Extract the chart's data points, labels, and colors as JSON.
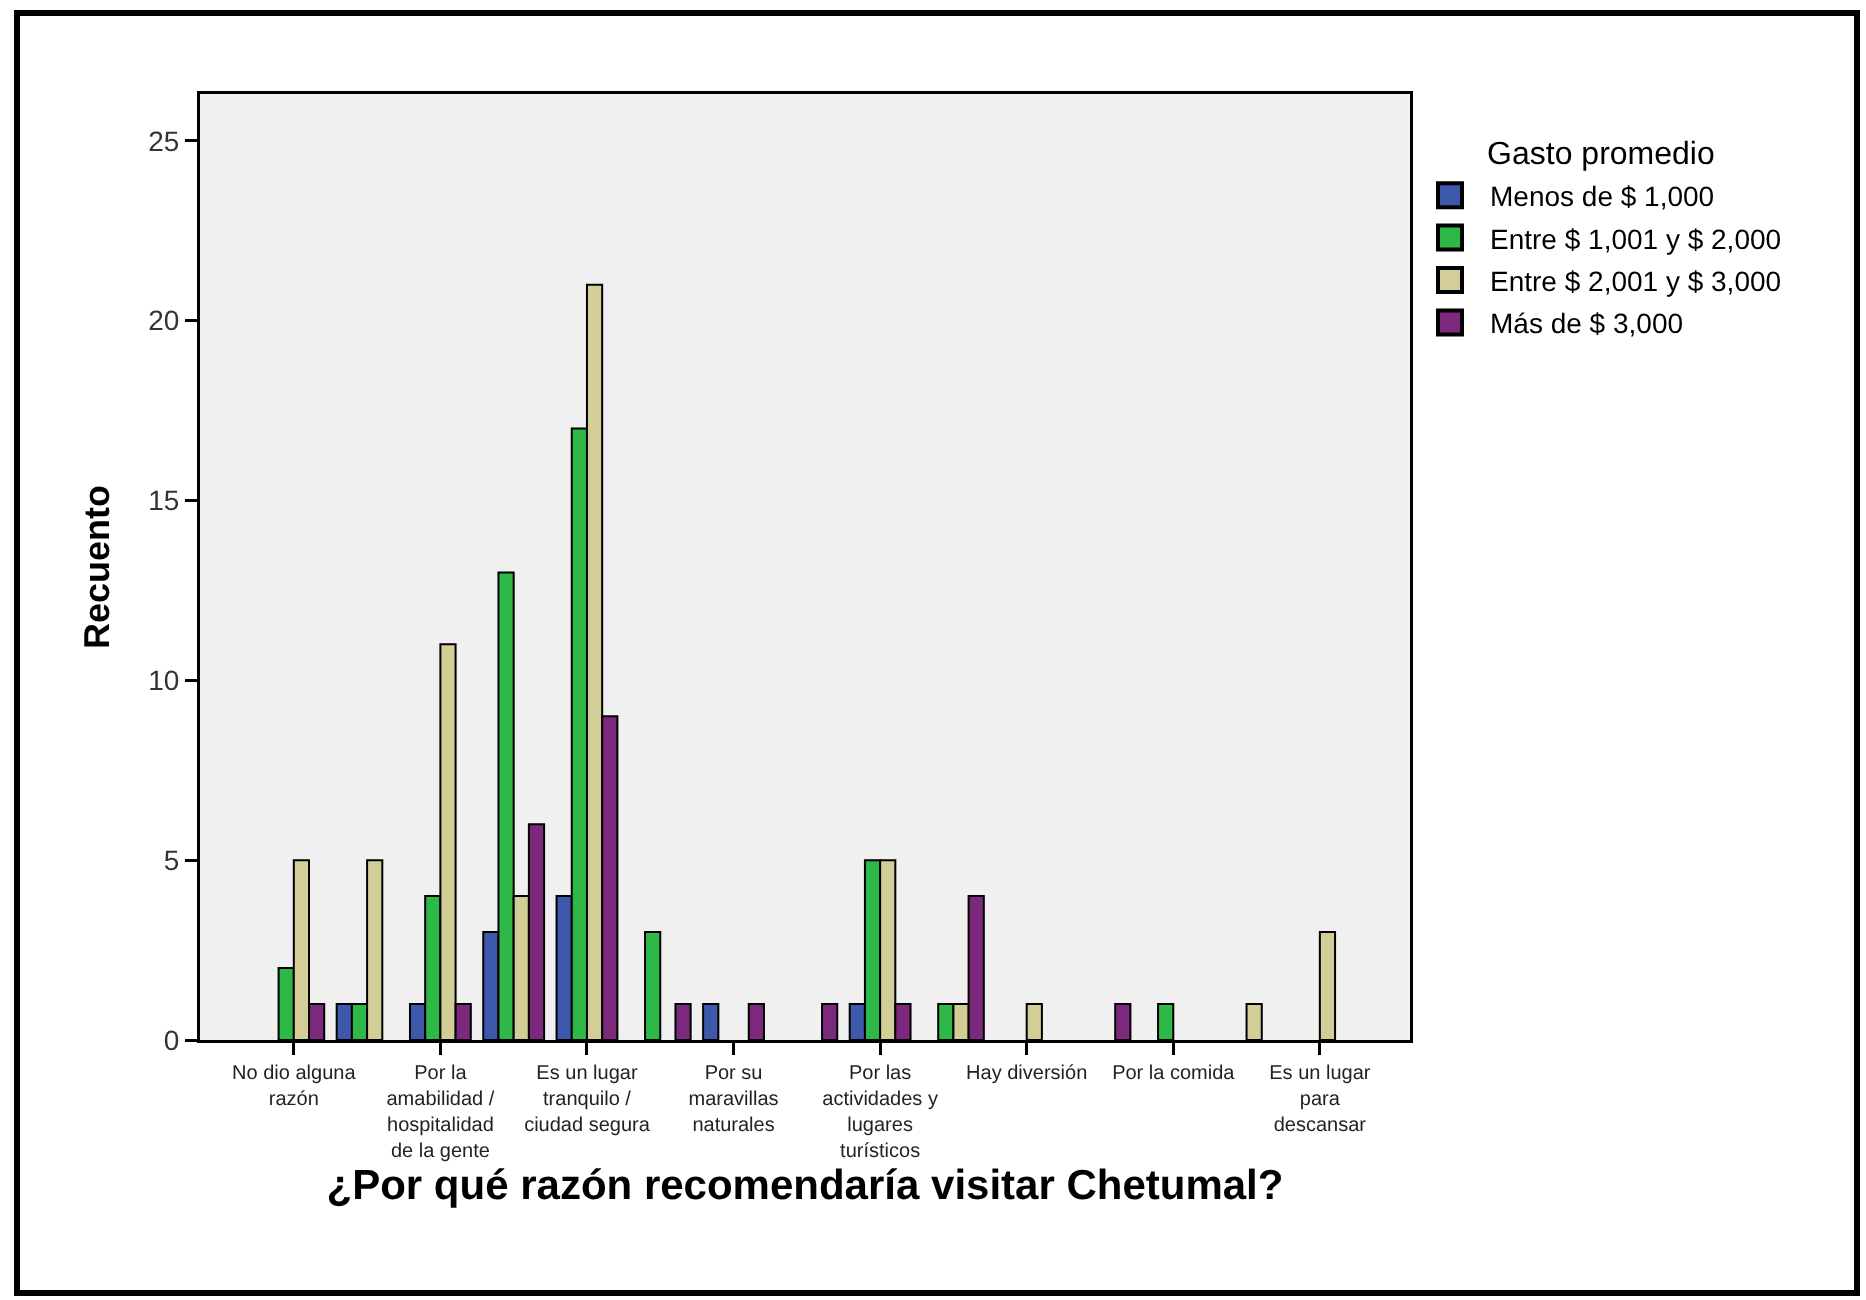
{
  "chart_data": {
    "type": "bar",
    "xlabel": "¿Por qué razón recomendaría visitar Chetumal?",
    "ylabel": "Recuento",
    "legend_title": "Gasto promedio",
    "categories": [
      "No dio alguna razón",
      null,
      "Por la amabilidad / hospitalidad de la gente",
      null,
      "Es un lugar tranquilo / ciudad segura",
      null,
      "Por su maravillas naturales",
      null,
      "Por las actividades y lugares turísticos",
      null,
      "Hay diversión",
      null,
      "Por la comida",
      null,
      "Es un lugar para descansar"
    ],
    "series": [
      {
        "name": "Menos de $ 1,000",
        "color": "#3e58ac",
        "values": [
          null,
          1,
          1,
          3,
          4,
          null,
          1,
          null,
          1,
          null,
          null,
          null,
          null,
          null,
          null
        ]
      },
      {
        "name": "Entre $ 1,001 y $ 2,000",
        "color": "#2eb848",
        "values": [
          2,
          1,
          4,
          13,
          17,
          3,
          null,
          null,
          5,
          1,
          null,
          null,
          1,
          null,
          null
        ]
      },
      {
        "name": "Entre $ 2,001 y $ 3,000",
        "color": "#d3ce97",
        "values": [
          5,
          5,
          11,
          4,
          21,
          null,
          null,
          null,
          5,
          1,
          1,
          null,
          null,
          1,
          3
        ]
      },
      {
        "name": "Más de $ 3,000",
        "color": "#7c287d",
        "values": [
          1,
          null,
          1,
          6,
          9,
          1,
          1,
          1,
          1,
          4,
          null,
          1,
          null,
          null,
          null
        ]
      }
    ],
    "ylim": [
      0,
      26.3
    ],
    "yticks": [
      0,
      5,
      10,
      15,
      20,
      25
    ],
    "grid": false,
    "legend": "top right"
  }
}
